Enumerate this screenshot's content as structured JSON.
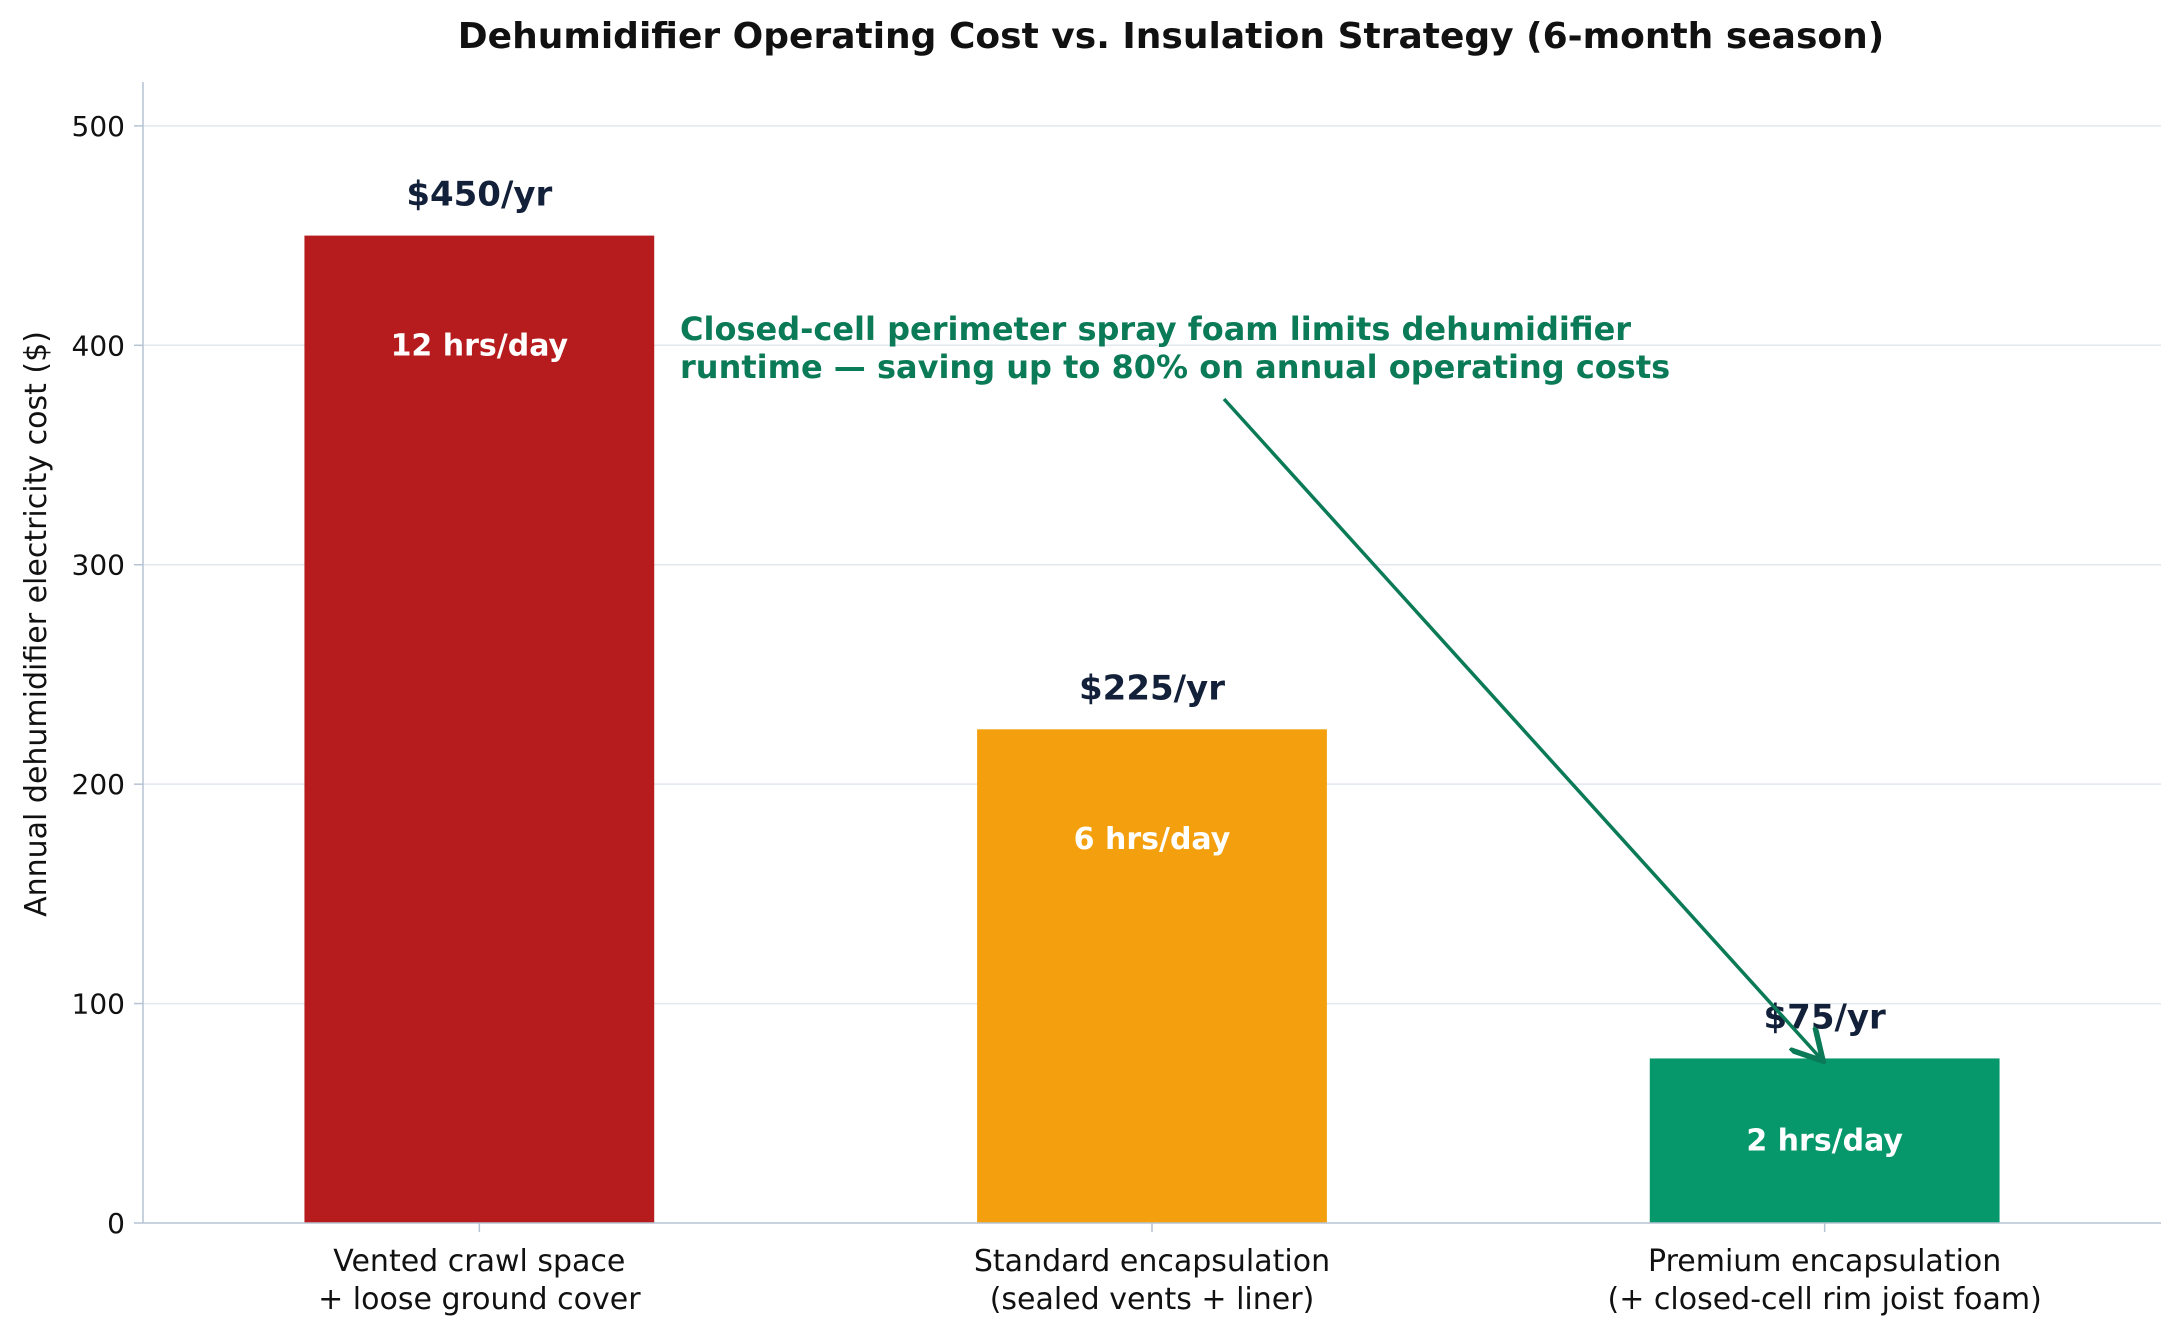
{
  "chart_data": {
    "type": "bar",
    "title": "Dehumidifier Operating Cost vs. Insulation Strategy (6-month season)",
    "xlabel": "",
    "ylabel": "Annual dehumidifier electricity cost ($)",
    "ylim": [
      0,
      520
    ],
    "yticks": [
      0,
      100,
      200,
      300,
      400,
      500
    ],
    "grid": true,
    "categories": [
      [
        "Vented crawl space",
        "+ loose ground cover"
      ],
      [
        "Standard encapsulation",
        "(sealed vents + liner)"
      ],
      [
        "Premium encapsulation",
        "(+ closed-cell rim joist foam)"
      ]
    ],
    "values": [
      450,
      225,
      75
    ],
    "value_labels": [
      "$450/yr",
      "$225/yr",
      "$75/yr"
    ],
    "runtime_labels": [
      "12 hrs/day",
      "6 hrs/day",
      "2 hrs/day"
    ],
    "colors": [
      "#b61c1e",
      "#f39f0e",
      "#06976a"
    ],
    "annotation": {
      "lines": [
        "Closed-cell perimeter spray foam limits dehumidifier",
        "runtime — saving up to 80% on annual operating costs"
      ],
      "color": "#0b7a56",
      "points_to_category": 2
    }
  }
}
